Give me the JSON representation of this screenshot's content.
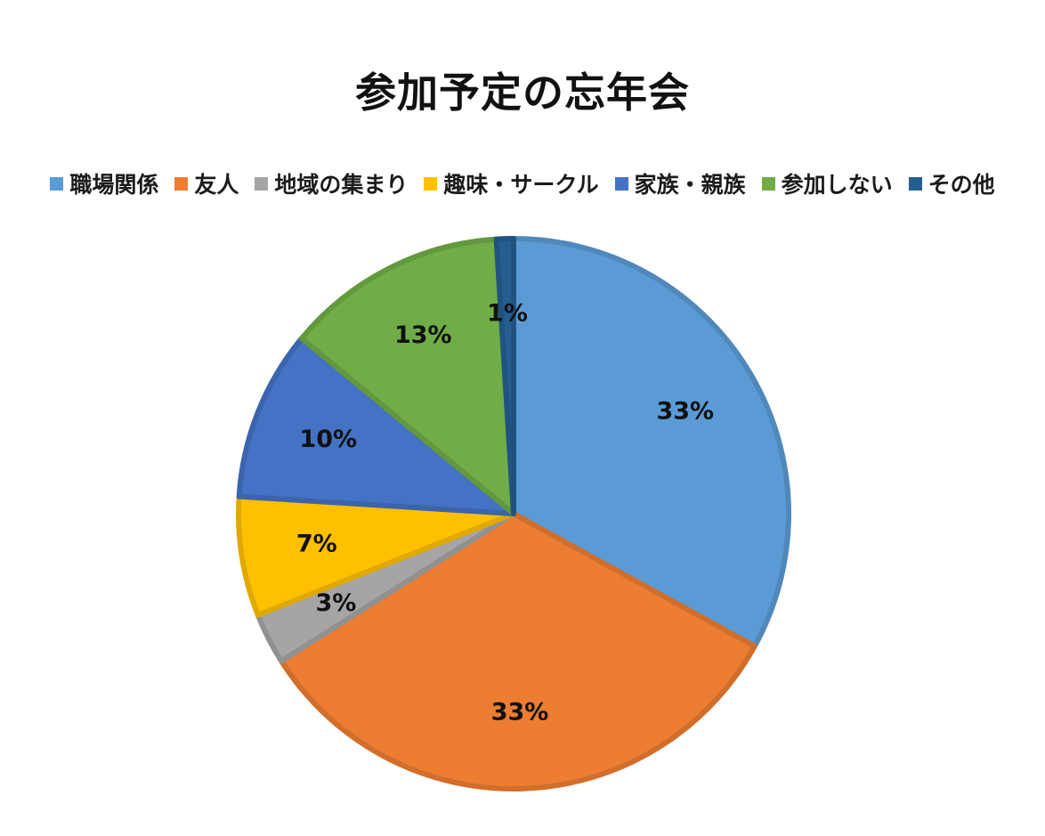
{
  "chart_data": {
    "type": "pie",
    "title": "参加予定の忘年会",
    "categories": [
      "職場関係",
      "友人",
      "地域の集まり",
      "趣味・サークル",
      "家族・親族",
      "参加しない",
      "その他"
    ],
    "values": [
      33,
      33,
      3,
      7,
      10,
      13,
      1
    ],
    "labels": [
      "33%",
      "33%",
      "3%",
      "7%",
      "10%",
      "13%",
      "1%"
    ],
    "colors": [
      "#5B9BD5",
      "#ED7D31",
      "#A5A5A5",
      "#FFC000",
      "#4472C4",
      "#70AD47",
      "#255E91"
    ],
    "legend_position": "top",
    "start_angle_deg": 0,
    "direction": "clockwise"
  }
}
